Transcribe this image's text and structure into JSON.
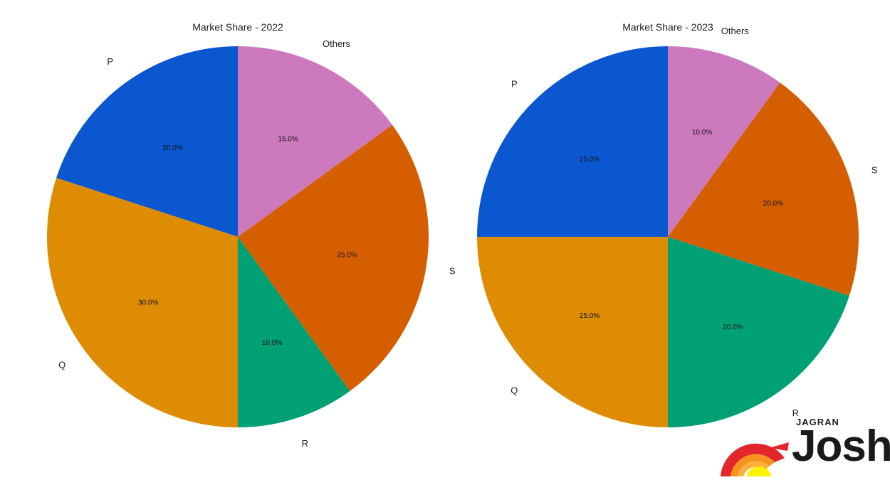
{
  "chart_data": [
    {
      "type": "pie",
      "title": "Market Share - 2022",
      "categories": [
        "P",
        "Q",
        "R",
        "S",
        "Others"
      ],
      "values": [
        20.0,
        30.0,
        10.0,
        25.0,
        15.0
      ],
      "value_labels": [
        "20.0%",
        "30.0%",
        "10.0%",
        "25.0%",
        "15.0%"
      ],
      "colors": [
        "#0b57d0",
        "#de8c04",
        "#00a075",
        "#d55e00",
        "#cc79bd"
      ],
      "start": "12 o'clock",
      "direction": "counterclockwise",
      "legend": "none"
    },
    {
      "type": "pie",
      "title": "Market Share - 2023",
      "categories": [
        "P",
        "Q",
        "R",
        "S",
        "Others"
      ],
      "values": [
        25.0,
        25.0,
        20.0,
        20.0,
        10.0
      ],
      "value_labels": [
        "25.0%",
        "25.0%",
        "20.0%",
        "20.0%",
        "10.0%"
      ],
      "colors": [
        "#0b57d0",
        "#de8c04",
        "#00a075",
        "#d55e00",
        "#cc79bd"
      ],
      "start": "12 o'clock",
      "direction": "counterclockwise",
      "legend": "none"
    }
  ],
  "logo": {
    "small_text": "JAGRAN",
    "big_text": "Josh"
  }
}
